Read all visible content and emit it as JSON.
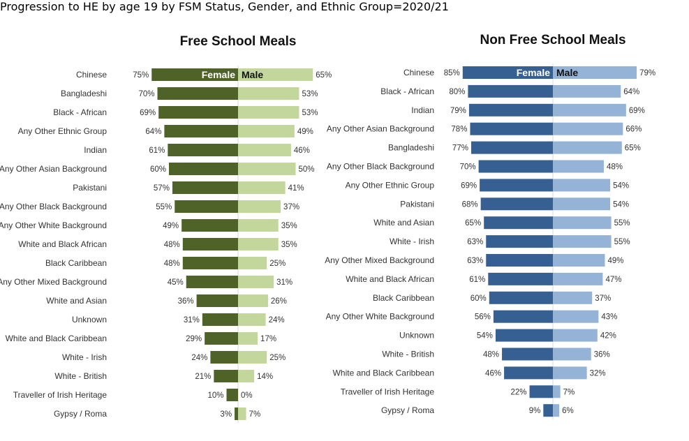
{
  "page_title": "Progression to HE by age 19 by FSM Status, Gender, and Ethnic Group=2020/21",
  "chart_data": [
    {
      "type": "bar",
      "orientation": "horizontal-butterfly",
      "title": "Free School Meals",
      "female_label": "Female",
      "male_label": "Male",
      "colors": {
        "female": "#4f6228",
        "male": "#c3d69b"
      },
      "xlim": [
        0,
        100
      ],
      "categories": [
        "Chinese",
        "Bangladeshi",
        "Black - African",
        "Any Other Ethnic Group",
        "Indian",
        "Any Other Asian Background",
        "Pakistani",
        "Any Other Black Background",
        "Any Other White Background",
        "White and Black African",
        "Black Caribbean",
        "Any Other Mixed Background",
        "White and Asian",
        "Unknown",
        "White and Black Caribbean",
        "White - Irish",
        "White - British",
        "Traveller of Irish Heritage",
        "Gypsy / Roma"
      ],
      "series": [
        {
          "name": "Female",
          "values": [
            75,
            70,
            69,
            64,
            61,
            60,
            57,
            55,
            49,
            48,
            48,
            45,
            36,
            31,
            29,
            24,
            21,
            10,
            3
          ]
        },
        {
          "name": "Male",
          "values": [
            65,
            53,
            53,
            49,
            46,
            50,
            41,
            37,
            35,
            35,
            25,
            31,
            26,
            24,
            17,
            25,
            14,
            0,
            7
          ]
        }
      ]
    },
    {
      "type": "bar",
      "orientation": "horizontal-butterfly",
      "title": "Non Free School Meals",
      "female_label": "Female",
      "male_label": "Male",
      "colors": {
        "female": "#376092",
        "male": "#95b3d7"
      },
      "xlim": [
        0,
        100
      ],
      "categories": [
        "Chinese",
        "Black - African",
        "Indian",
        "Any Other Asian Background",
        "Bangladeshi",
        "Any Other Black Background",
        "Any Other Ethnic Group",
        "Pakistani",
        "White and Asian",
        "White - Irish",
        "Any Other Mixed Background",
        "White and Black African",
        "Black Caribbean",
        "Any Other White Background",
        "Unknown",
        "White - British",
        "White and Black Caribbean",
        "Traveller of Irish Heritage",
        "Gypsy / Roma"
      ],
      "series": [
        {
          "name": "Female",
          "values": [
            85,
            80,
            79,
            78,
            77,
            70,
            69,
            68,
            65,
            63,
            63,
            61,
            60,
            56,
            54,
            48,
            46,
            22,
            9
          ]
        },
        {
          "name": "Male",
          "values": [
            79,
            64,
            69,
            66,
            65,
            48,
            54,
            54,
            55,
            55,
            49,
            47,
            37,
            43,
            42,
            36,
            32,
            7,
            6
          ]
        }
      ]
    }
  ]
}
